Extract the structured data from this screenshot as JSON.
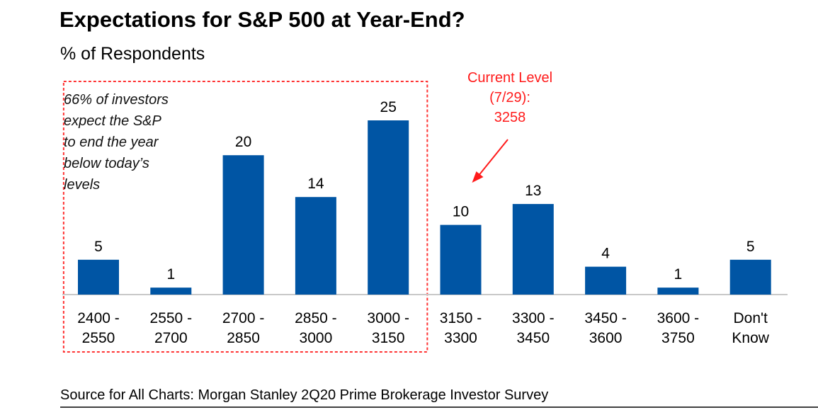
{
  "chart_data": {
    "type": "bar",
    "title": "Expectations for S&P 500 at Year-End?",
    "subtitle": "% of Respondents",
    "categories": [
      [
        "2400 -",
        "2550"
      ],
      [
        "2550 -",
        "2700"
      ],
      [
        "2700 -",
        "2850"
      ],
      [
        "2850 -",
        "3000"
      ],
      [
        "3000 -",
        "3150"
      ],
      [
        "3150 -",
        "3300"
      ],
      [
        "3300 -",
        "3450"
      ],
      [
        "3450 -",
        "3600"
      ],
      [
        "3600 -",
        "3750"
      ],
      [
        "Don't",
        "Know"
      ]
    ],
    "values": [
      5,
      1,
      20,
      14,
      25,
      10,
      13,
      4,
      1,
      5
    ],
    "ylim": [
      0,
      25
    ],
    "grid": false,
    "bar_color": "#0055a4",
    "highlight_box": {
      "covers_categories": [
        0,
        4
      ],
      "color": "#ff3333",
      "text": [
        "66% of investors",
        "expect the S&P",
        "to end the year",
        "below today’s",
        "levels"
      ]
    },
    "callout": {
      "lines": [
        "Current Level",
        "(7/29):",
        "3258"
      ],
      "color": "#ff1a1a",
      "points_to_category": 5
    }
  },
  "source": "Source for All Charts: Morgan Stanley 2Q20 Prime Brokerage Investor Survey"
}
